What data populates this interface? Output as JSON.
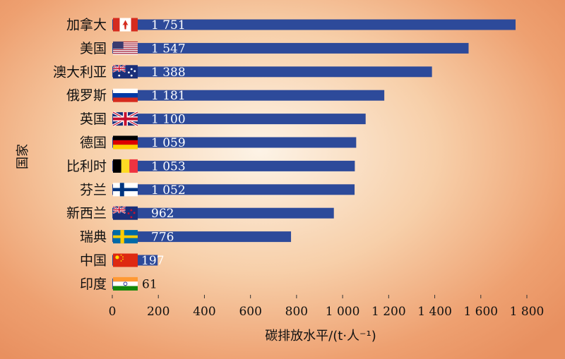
{
  "chart_data": {
    "type": "bar",
    "orientation": "horizontal",
    "categories": [
      "加拿大",
      "美国",
      "澳大利亚",
      "俄罗斯",
      "英国",
      "德国",
      "比利时",
      "芬兰",
      "新西兰",
      "瑞典",
      "中国",
      "印度"
    ],
    "flags": [
      "canada",
      "usa",
      "australia",
      "russia",
      "uk",
      "germany",
      "belgium",
      "finland",
      "new-zealand",
      "sweden",
      "china",
      "india"
    ],
    "values": [
      1751,
      1547,
      1388,
      1181,
      1100,
      1059,
      1053,
      1052,
      962,
      776,
      197,
      61
    ],
    "value_labels": [
      "1 751",
      "1 547",
      "1 388",
      "1 181",
      "1 100",
      "1 059",
      "1 053",
      "1 052",
      "962",
      "776",
      "197",
      "61"
    ],
    "xlabel": "碳排放水平/(t·人⁻¹)",
    "ylabel": "国家",
    "xlim": [
      0,
      1800
    ],
    "xticks": [
      0,
      200,
      400,
      600,
      800,
      1000,
      1200,
      1400,
      1600,
      1800
    ],
    "xtick_labels": [
      "0",
      "200",
      "400",
      "600",
      "800",
      "1 000",
      "1 200",
      "1 400",
      "1 600",
      "1 800"
    ],
    "grid": false,
    "bar_color": "#2d4a9a"
  }
}
